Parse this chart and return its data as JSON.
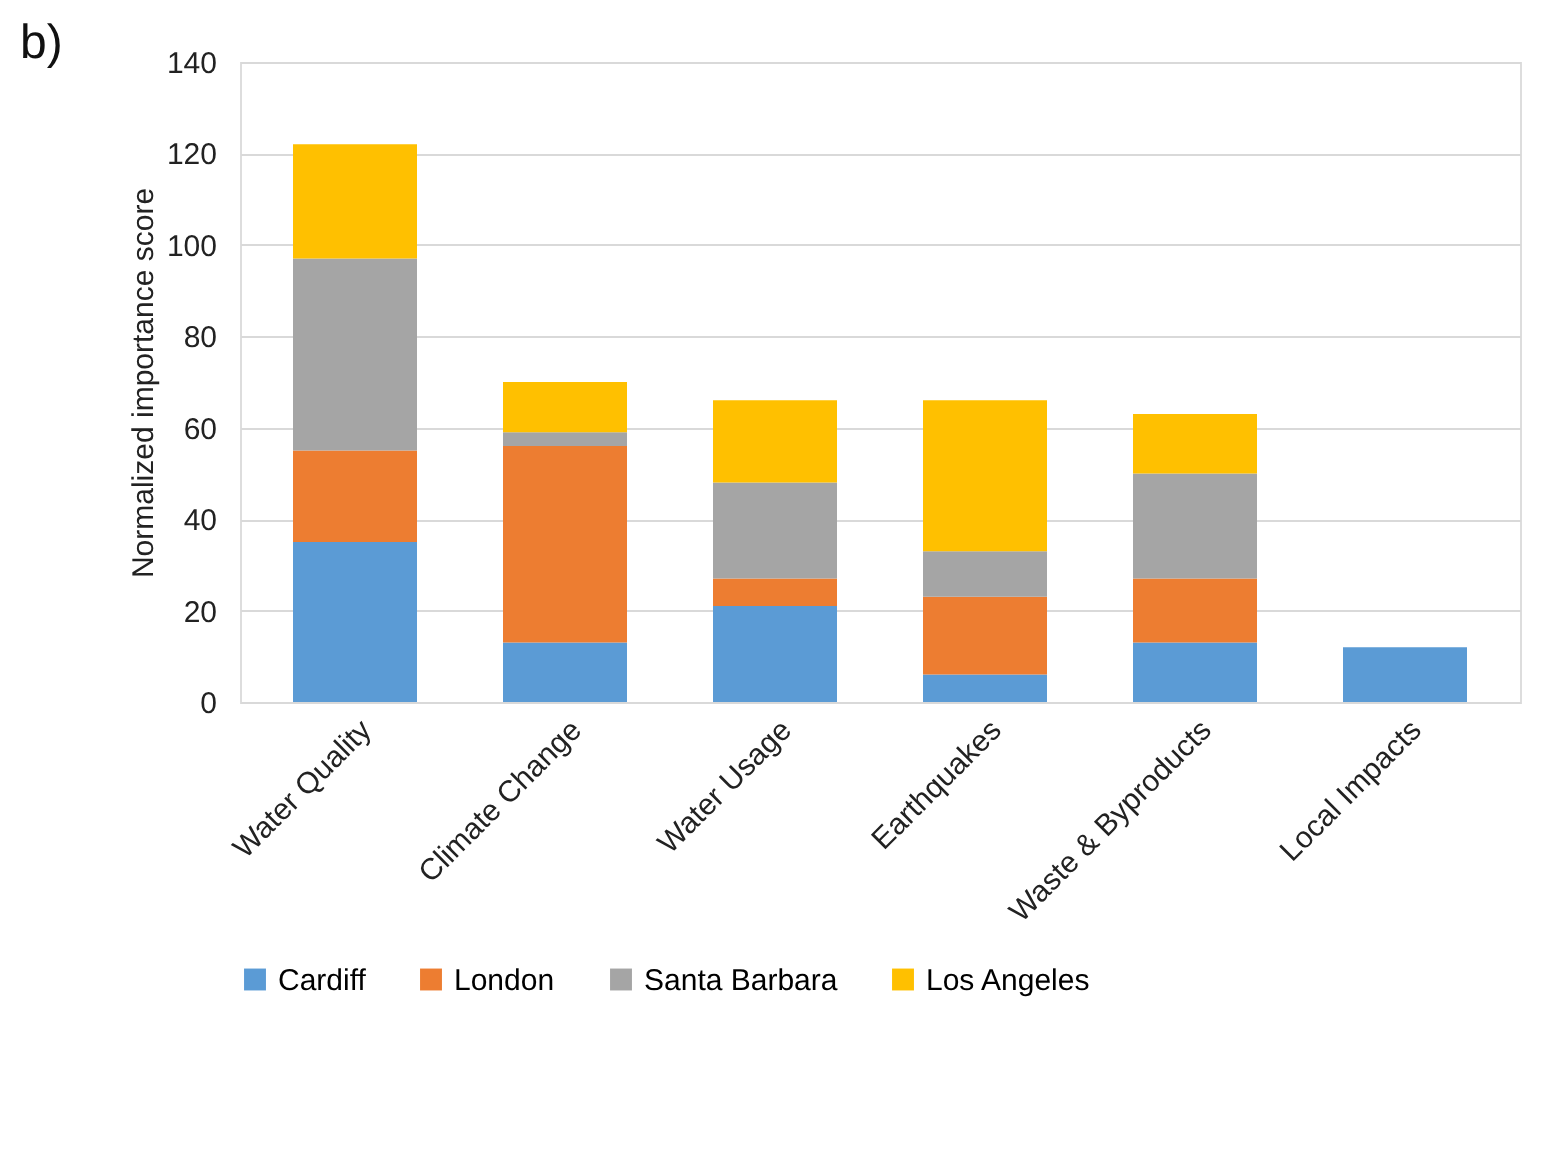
{
  "chart_data": {
    "type": "bar",
    "title": "b)",
    "ylabel": "Normalized importance score",
    "categories": [
      "Water Quality",
      "Climate Change",
      "Water Usage",
      "Earthquakes",
      "Waste & Byproducts",
      "Local Impacts"
    ],
    "stacked": true,
    "ylim": [
      0,
      140
    ],
    "yticks": [
      0,
      20,
      40,
      60,
      80,
      100,
      120,
      140
    ],
    "grid": "y",
    "legend": "bottom",
    "series": [
      {
        "name": "Cardiff",
        "color": "#5b9bd5",
        "values": [
          35,
          13,
          21,
          6,
          13,
          12
        ]
      },
      {
        "name": "London",
        "color": "#ed7d31",
        "values": [
          20,
          43,
          6,
          17,
          14,
          0
        ]
      },
      {
        "name": "Santa Barbara",
        "color": "#a5a5a5",
        "values": [
          42,
          3,
          21,
          10,
          23,
          0
        ]
      },
      {
        "name": "Los Angeles",
        "color": "#ffc000",
        "values": [
          25,
          11,
          18,
          33,
          13,
          0
        ]
      }
    ]
  }
}
